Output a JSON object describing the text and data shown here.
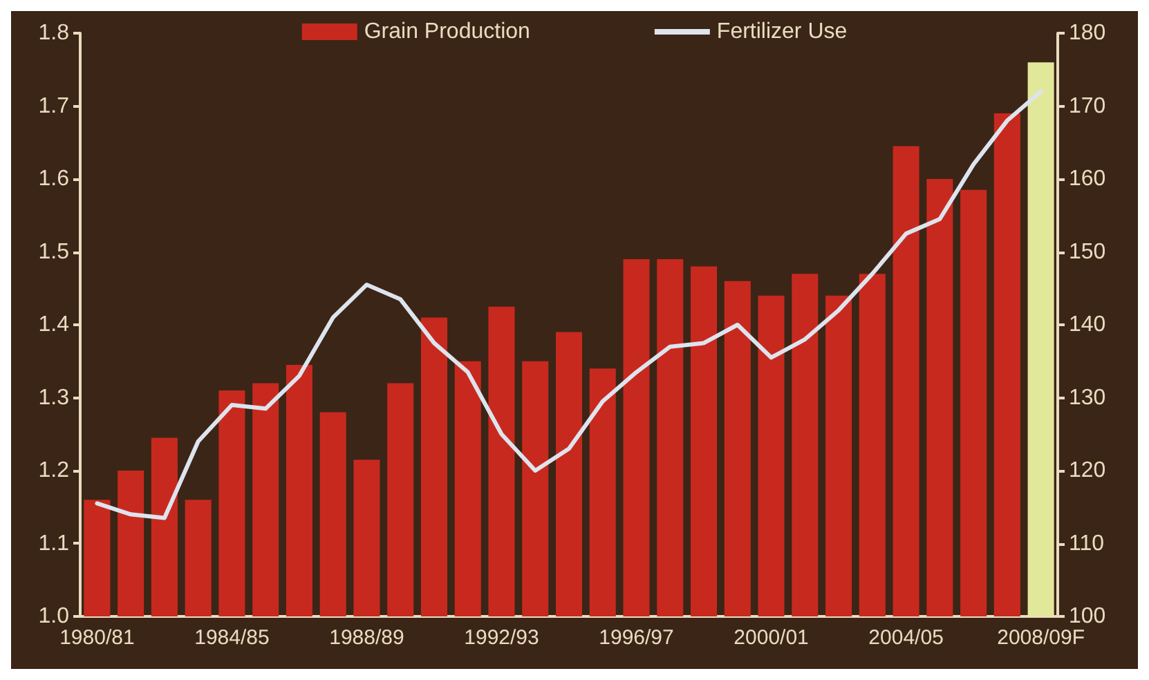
{
  "chart_data": {
    "type": "bar",
    "categories": [
      "1980/81",
      null,
      null,
      null,
      "1984/85",
      null,
      null,
      null,
      "1988/89",
      null,
      null,
      null,
      "1992/93",
      null,
      null,
      null,
      "1996/97",
      null,
      null,
      null,
      "2000/01",
      null,
      null,
      null,
      "2004/05",
      null,
      null,
      null,
      "2008/09F"
    ],
    "series": [
      {
        "name": "Grain Production",
        "color": "#c8291e",
        "colors": [
          "#c8291e",
          "#c8291e",
          "#c8291e",
          "#c8291e",
          "#c8291e",
          "#c8291e",
          "#c8291e",
          "#c8291e",
          "#c8291e",
          "#c8291e",
          "#c8291e",
          "#c8291e",
          "#c8291e",
          "#c8291e",
          "#c8291e",
          "#c8291e",
          "#c8291e",
          "#c8291e",
          "#c8291e",
          "#c8291e",
          "#c8291e",
          "#c8291e",
          "#c8291e",
          "#c8291e",
          "#c8291e",
          "#c8291e",
          "#c8291e",
          "#c8291e",
          "#e2e89a"
        ],
        "values": [
          1.16,
          1.2,
          1.245,
          1.16,
          1.31,
          1.32,
          1.345,
          1.28,
          1.215,
          1.32,
          1.41,
          1.35,
          1.425,
          1.35,
          1.39,
          1.34,
          1.49,
          1.49,
          1.48,
          1.46,
          1.44,
          1.47,
          1.44,
          1.47,
          1.645,
          1.6,
          1.585,
          1.69,
          1.76
        ]
      },
      {
        "name": "Fertilizer Use",
        "type": "line",
        "axis": "y2",
        "color": "#dde4ee",
        "values": [
          115.5,
          114,
          113.5,
          124,
          129,
          128.5,
          133,
          141,
          145.5,
          143.5,
          137.5,
          133.5,
          125,
          120,
          123,
          129.5,
          133.5,
          137,
          137.5,
          140,
          135.5,
          138,
          142,
          147,
          152.5,
          154.5,
          162,
          168,
          172
        ]
      }
    ],
    "ylim": [
      1.0,
      1.8
    ],
    "yticks": [
      {
        "value": 1.0,
        "label": "1.0"
      },
      1.1,
      1.2,
      1.3,
      1.4,
      1.5,
      1.6,
      1.7,
      1.8
    ],
    "y2lim": [
      100,
      180
    ],
    "y2ticks": [
      100,
      110,
      120,
      130,
      140,
      150,
      160,
      170,
      180
    ],
    "grid": false,
    "legend": "top",
    "marker": "none",
    "line_style": "solid"
  }
}
